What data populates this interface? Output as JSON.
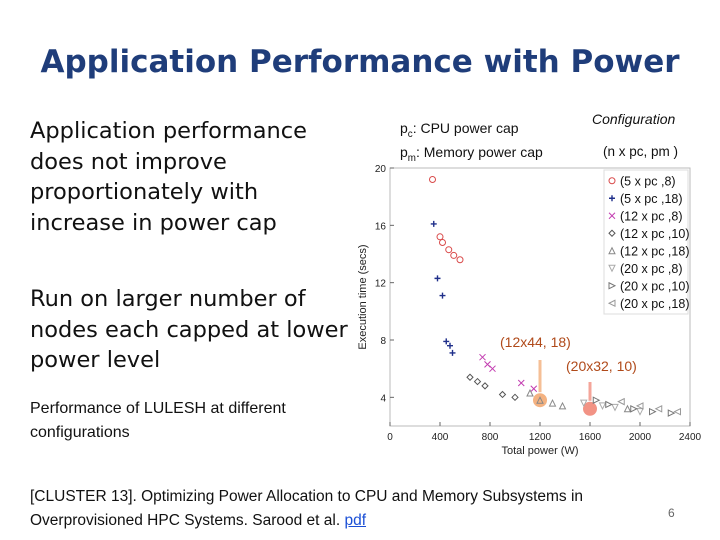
{
  "slide": {
    "title": "Application Performance with Power",
    "bullet1": "Application performance does not improve proportionately with increase in power cap",
    "bullet2": "Run on larger number of nodes each capped at lower power level",
    "caption": "Performance of LULESH at different configurations",
    "citation_text": "[CLUSTER 13]. Optimizing Power Allocation to CPU and Memory Subsystems in Overprovisioned HPC Systems. Sarood et al.",
    "citation_link": "pdf",
    "page_number": "6"
  },
  "legend_notes": {
    "pc_symbol": "p",
    "pc_sub": "c",
    "pc_text": ": CPU power cap",
    "pm_symbol": "p",
    "pm_sub": "m",
    "pm_text": ": Memory power cap",
    "config_title": "Configuration",
    "config_format": "(n x pc, pm )"
  },
  "annotations": {
    "a1": "(12x44, 18)",
    "a2": "(20x32, 10)"
  },
  "chart_data": {
    "type": "scatter",
    "title": "",
    "xlabel": "Total power (W)",
    "ylabel": "Execution time (secs)",
    "xlim": [
      0,
      2400
    ],
    "ylim": [
      2,
      20
    ],
    "xticks": [
      0,
      400,
      800,
      1200,
      1600,
      2000,
      2400
    ],
    "yticks": [
      4,
      8,
      12,
      16,
      20
    ],
    "legend_position": "right",
    "series": [
      {
        "name": "(5 x pc ,8)",
        "marker": "circle",
        "color": "#d94a4a",
        "points": [
          [
            340,
            19.2
          ],
          [
            400,
            15.2
          ],
          [
            420,
            14.8
          ],
          [
            470,
            14.3
          ],
          [
            510,
            13.9
          ],
          [
            560,
            13.6
          ]
        ]
      },
      {
        "name": "(5 x pc ,18)",
        "marker": "plus",
        "color": "#1f2f8a",
        "points": [
          [
            350,
            16.1
          ],
          [
            380,
            12.3
          ],
          [
            420,
            11.1
          ],
          [
            450,
            7.9
          ],
          [
            480,
            7.6
          ],
          [
            500,
            7.1
          ]
        ]
      },
      {
        "name": "(12 x pc ,8)",
        "marker": "x",
        "color": "#c23bb0",
        "points": [
          [
            740,
            6.8
          ],
          [
            780,
            6.3
          ],
          [
            820,
            6.0
          ],
          [
            1050,
            5.0
          ],
          [
            1150,
            4.6
          ]
        ]
      },
      {
        "name": "(12 x pc ,10)",
        "marker": "diamond",
        "color": "#555555",
        "points": [
          [
            640,
            5.4
          ],
          [
            700,
            5.1
          ],
          [
            760,
            4.8
          ],
          [
            900,
            4.2
          ],
          [
            1000,
            4.0
          ]
        ]
      },
      {
        "name": "(12 x pc ,18)",
        "marker": "triangle-up",
        "color": "#888888",
        "points": [
          [
            1120,
            4.3
          ],
          [
            1200,
            3.8
          ],
          [
            1300,
            3.6
          ],
          [
            1380,
            3.4
          ],
          [
            1900,
            3.2
          ]
        ]
      },
      {
        "name": "(20 x pc ,8)",
        "marker": "triangle-down",
        "color": "#aaaaaa",
        "points": [
          [
            1550,
            3.6
          ],
          [
            1700,
            3.4
          ],
          [
            1800,
            3.3
          ],
          [
            2000,
            3.0
          ]
        ]
      },
      {
        "name": "(20 x pc ,10)",
        "marker": "triangle-right",
        "color": "#777777",
        "points": [
          [
            1650,
            3.8
          ],
          [
            1750,
            3.5
          ],
          [
            1950,
            3.2
          ],
          [
            2100,
            3.0
          ],
          [
            2250,
            2.9
          ]
        ]
      },
      {
        "name": "(20 x pc ,18)",
        "marker": "triangle-left",
        "color": "#999999",
        "points": [
          [
            1850,
            3.7
          ],
          [
            2000,
            3.4
          ],
          [
            2150,
            3.2
          ],
          [
            2300,
            3.0
          ]
        ]
      }
    ],
    "highlights": [
      {
        "label": "(12x44, 18)",
        "x": 1200,
        "y": 3.8,
        "color": "#f2a46b"
      },
      {
        "label": "(20x32, 10)",
        "x": 1600,
        "y": 3.2,
        "color": "#f08070"
      }
    ]
  }
}
